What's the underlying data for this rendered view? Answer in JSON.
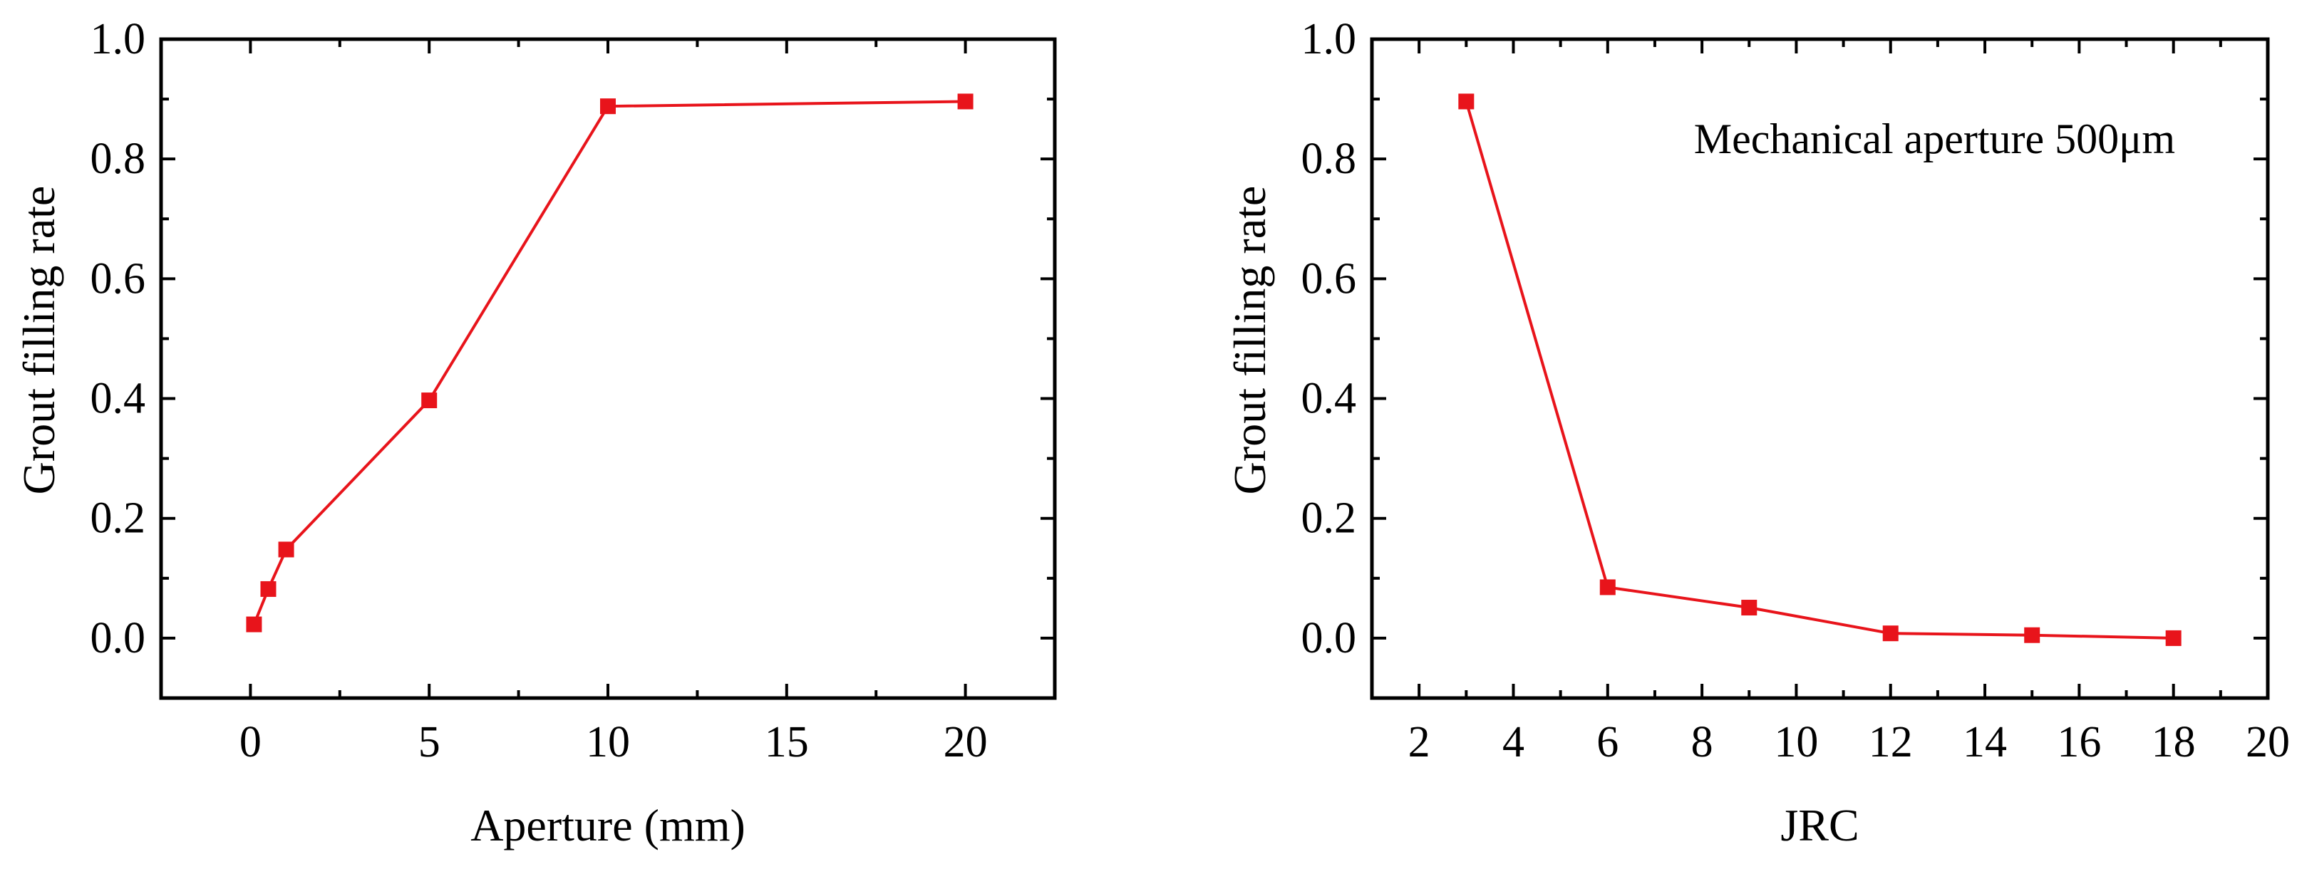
{
  "chart_data": [
    {
      "type": "line",
      "title": "",
      "xlabel": "Aperture (mm)",
      "ylabel": "Grout filling rate",
      "xlim": [
        -2.5,
        22.5
      ],
      "ylim": [
        -0.1,
        1.0
      ],
      "xticks": [
        0,
        5,
        10,
        15,
        20
      ],
      "xtick_labels": [
        "0",
        "5",
        "10",
        "15",
        "20"
      ],
      "yticks": [
        0.0,
        0.2,
        0.4,
        0.6,
        0.8,
        1.0
      ],
      "ytick_labels": [
        "0.0",
        "0.2",
        "0.4",
        "0.6",
        "0.8",
        "1.0"
      ],
      "annotation": "",
      "color": "#e8141b",
      "grid": false,
      "series": [
        {
          "x": [
            0.1,
            0.5,
            1,
            5,
            10,
            20
          ],
          "y": [
            0.023,
            0.082,
            0.148,
            0.397,
            0.888,
            0.896
          ]
        }
      ]
    },
    {
      "type": "line",
      "title": "",
      "xlabel": "JRC",
      "ylabel": "Grout filling rate",
      "xlim": [
        1,
        20
      ],
      "ylim": [
        -0.1,
        1.0
      ],
      "xticks": [
        2,
        4,
        6,
        8,
        10,
        12,
        14,
        16,
        18,
        20
      ],
      "xtick_labels": [
        "2",
        "4",
        "6",
        "8",
        "10",
        "12",
        "14",
        "16",
        "18",
        "20"
      ],
      "yticks": [
        0.0,
        0.2,
        0.4,
        0.6,
        0.8,
        1.0
      ],
      "ytick_labels": [
        "0.0",
        "0.2",
        "0.4",
        "0.6",
        "0.8",
        "1.0"
      ],
      "annotation": "Mechanical aperture  500μm",
      "color": "#e8141b",
      "grid": false,
      "series": [
        {
          "x": [
            3,
            6,
            9,
            12,
            15,
            18
          ],
          "y": [
            0.896,
            0.085,
            0.051,
            0.008,
            0.005,
            0.0
          ]
        }
      ]
    }
  ]
}
